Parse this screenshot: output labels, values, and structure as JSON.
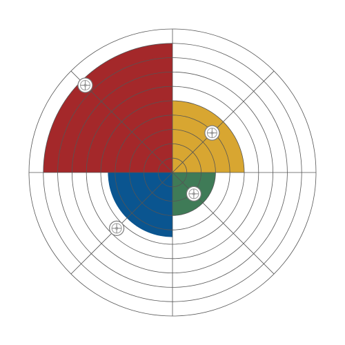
{
  "board": {
    "rings": 10,
    "spokes": 8,
    "ring_color": "#555555",
    "background": "#ffffff"
  },
  "quadrants": [
    {
      "name": "quadrant-top-left",
      "color": "#a4282a",
      "level": 9,
      "quarter": "top-left"
    },
    {
      "name": "quadrant-top-right",
      "color": "#d8a631",
      "level": 5,
      "quarter": "top-right"
    },
    {
      "name": "quadrant-bottom-right",
      "color": "#3f7b57",
      "level": 3,
      "quarter": "bottom-right"
    },
    {
      "name": "quadrant-bottom-left",
      "color": "#0a5590",
      "level": 4.5,
      "quarter": "bottom-left"
    }
  ],
  "markers": [
    {
      "name": "marker-top-left",
      "quarter": "top-left",
      "level": 8.6
    },
    {
      "name": "marker-top-right",
      "quarter": "top-right",
      "level": 3.9
    },
    {
      "name": "marker-bottom-right",
      "quarter": "bottom-right",
      "level": 2.1
    },
    {
      "name": "marker-bottom-left",
      "quarter": "bottom-left",
      "level": 5.5
    }
  ],
  "icons": {
    "marker": "crosshair-marker-icon"
  }
}
